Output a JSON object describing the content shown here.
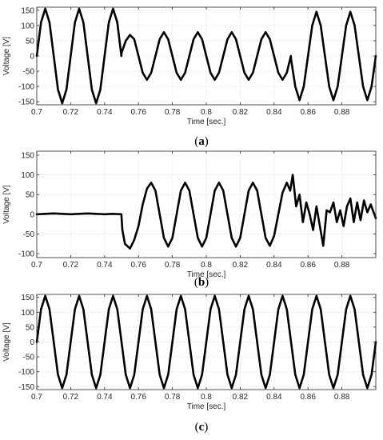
{
  "chart_data": [
    {
      "type": "line",
      "panel_label": "a",
      "xlabel": "Time [sec.]",
      "ylabel": "Voltage [V]",
      "xlim": [
        0.7,
        0.9
      ],
      "ylim": [
        -160,
        160
      ],
      "xticks": [
        0.7,
        0.72,
        0.74,
        0.76,
        0.78,
        0.8,
        0.82,
        0.84,
        0.86,
        0.88
      ],
      "yticks": [
        150,
        100,
        50,
        0,
        -50,
        -100,
        -150
      ],
      "grid": true,
      "series": [
        {
          "x": [
            0.7,
            0.7025,
            0.705,
            0.7075,
            0.71,
            0.7125,
            0.715,
            0.7175,
            0.72,
            0.7225,
            0.725,
            0.7275,
            0.73,
            0.7325,
            0.735,
            0.7375,
            0.74,
            0.7425,
            0.745,
            0.7475,
            0.7499,
            0.75,
            0.7525,
            0.755,
            0.7575,
            0.76,
            0.7625,
            0.765,
            0.7675,
            0.77,
            0.7725,
            0.775,
            0.7775,
            0.78,
            0.7825,
            0.785,
            0.7875,
            0.79,
            0.7925,
            0.795,
            0.7975,
            0.8,
            0.8025,
            0.805,
            0.8075,
            0.81,
            0.8125,
            0.815,
            0.8175,
            0.82,
            0.8225,
            0.825,
            0.8275,
            0.83,
            0.8325,
            0.835,
            0.8375,
            0.84,
            0.8425,
            0.845,
            0.8475,
            0.8499,
            0.85,
            0.8525,
            0.855,
            0.8575,
            0.86,
            0.8625,
            0.865,
            0.8675,
            0.87,
            0.8725,
            0.875,
            0.8775,
            0.88,
            0.8825,
            0.885,
            0.8875,
            0.89,
            0.8925,
            0.895,
            0.8975,
            0.9
          ],
          "y": [
            0,
            110,
            155,
            110,
            0,
            -110,
            -155,
            -110,
            0,
            110,
            155,
            110,
            0,
            -110,
            -155,
            -110,
            0,
            110,
            155,
            110,
            0,
            10,
            50,
            69,
            55,
            0,
            -55,
            -78,
            -55,
            0,
            55,
            78,
            55,
            0,
            -55,
            -78,
            -55,
            0,
            55,
            78,
            55,
            0,
            -55,
            -78,
            -55,
            0,
            55,
            78,
            55,
            0,
            -55,
            -78,
            -55,
            0,
            55,
            78,
            55,
            0,
            -55,
            -78,
            -55,
            0,
            -10,
            -100,
            -145,
            -100,
            0,
            100,
            145,
            100,
            0,
            -100,
            -145,
            -100,
            0,
            100,
            145,
            100,
            0,
            -100,
            -145,
            -100,
            0
          ]
        }
      ]
    },
    {
      "type": "line",
      "panel_label": "b",
      "xlabel": "Time [sec.]",
      "ylabel": "Voltage [V]",
      "xlim": [
        0.7,
        0.9
      ],
      "ylim": [
        -110,
        160
      ],
      "xticks": [
        0.7,
        0.72,
        0.74,
        0.76,
        0.78,
        0.8,
        0.82,
        0.84,
        0.86,
        0.88
      ],
      "yticks": [
        150,
        100,
        50,
        0,
        -50,
        -100
      ],
      "grid": true,
      "series": [
        {
          "x": [
            0.7,
            0.71,
            0.72,
            0.73,
            0.74,
            0.745,
            0.7499,
            0.7505,
            0.752,
            0.755,
            0.7575,
            0.76,
            0.7625,
            0.765,
            0.7675,
            0.77,
            0.7725,
            0.775,
            0.7775,
            0.78,
            0.7825,
            0.785,
            0.7875,
            0.79,
            0.7925,
            0.795,
            0.7975,
            0.8,
            0.8025,
            0.805,
            0.8075,
            0.81,
            0.8125,
            0.815,
            0.8175,
            0.82,
            0.8225,
            0.825,
            0.8275,
            0.83,
            0.8325,
            0.835,
            0.8375,
            0.84,
            0.8425,
            0.845,
            0.8475,
            0.8495,
            0.851,
            0.853,
            0.855,
            0.857,
            0.859,
            0.861,
            0.863,
            0.865,
            0.867,
            0.869,
            0.871,
            0.873,
            0.875,
            0.877,
            0.879,
            0.881,
            0.883,
            0.885,
            0.887,
            0.889,
            0.891,
            0.893,
            0.895,
            0.897,
            0.9
          ],
          "y": [
            0,
            2,
            0,
            2,
            0,
            1,
            0,
            -40,
            -75,
            -87,
            -65,
            -30,
            25,
            65,
            80,
            60,
            0,
            -60,
            -82,
            -60,
            0,
            60,
            80,
            60,
            0,
            -60,
            -82,
            -60,
            0,
            60,
            80,
            60,
            0,
            -60,
            -82,
            -60,
            0,
            60,
            80,
            60,
            0,
            -60,
            -80,
            -55,
            0,
            55,
            80,
            60,
            100,
            20,
            50,
            -20,
            30,
            0,
            -40,
            20,
            -30,
            -80,
            10,
            5,
            30,
            -20,
            10,
            -30,
            20,
            40,
            -20,
            30,
            -15,
            35,
            5,
            25,
            -10
          ]
        }
      ]
    },
    {
      "type": "line",
      "panel_label": "c",
      "xlabel": "Time [sec.]",
      "ylabel": "Voltage [V]",
      "xlim": [
        0.7,
        0.9
      ],
      "ylim": [
        -160,
        160
      ],
      "xticks": [
        0.7,
        0.72,
        0.74,
        0.76,
        0.78,
        0.8,
        0.82,
        0.84,
        0.86,
        0.88
      ],
      "yticks": [
        150,
        100,
        50,
        0,
        -50,
        -100,
        -150
      ],
      "grid": true,
      "series": [
        {
          "x": [
            0.7,
            0.7025,
            0.705,
            0.7075,
            0.71,
            0.7125,
            0.715,
            0.7175,
            0.72,
            0.7225,
            0.725,
            0.7275,
            0.73,
            0.7325,
            0.735,
            0.7375,
            0.74,
            0.7425,
            0.745,
            0.7475,
            0.75,
            0.7525,
            0.755,
            0.7575,
            0.76,
            0.7625,
            0.765,
            0.7675,
            0.77,
            0.7725,
            0.775,
            0.7775,
            0.78,
            0.7825,
            0.785,
            0.7875,
            0.79,
            0.7925,
            0.795,
            0.7975,
            0.8,
            0.8025,
            0.805,
            0.8075,
            0.81,
            0.8125,
            0.815,
            0.8175,
            0.82,
            0.8225,
            0.825,
            0.8275,
            0.83,
            0.8325,
            0.835,
            0.8375,
            0.84,
            0.8425,
            0.845,
            0.8475,
            0.85,
            0.8525,
            0.855,
            0.8575,
            0.86,
            0.8625,
            0.865,
            0.8675,
            0.87,
            0.8725,
            0.875,
            0.8775,
            0.88,
            0.8825,
            0.885,
            0.8875,
            0.89,
            0.8925,
            0.895,
            0.8975,
            0.9
          ],
          "y": [
            0,
            110,
            155,
            110,
            0,
            -110,
            -155,
            -110,
            0,
            110,
            155,
            110,
            0,
            -110,
            -155,
            -110,
            0,
            110,
            155,
            110,
            0,
            -110,
            -155,
            -110,
            0,
            110,
            155,
            110,
            0,
            -110,
            -155,
            -110,
            0,
            110,
            155,
            110,
            0,
            -110,
            -155,
            -110,
            0,
            110,
            155,
            110,
            0,
            -110,
            -155,
            -110,
            0,
            110,
            155,
            110,
            0,
            -110,
            -155,
            -110,
            0,
            110,
            155,
            110,
            0,
            -110,
            -155,
            -110,
            0,
            110,
            155,
            110,
            0,
            -110,
            -155,
            -110,
            0,
            110,
            155,
            110,
            0,
            -110,
            -155,
            -110,
            0
          ]
        }
      ]
    }
  ]
}
